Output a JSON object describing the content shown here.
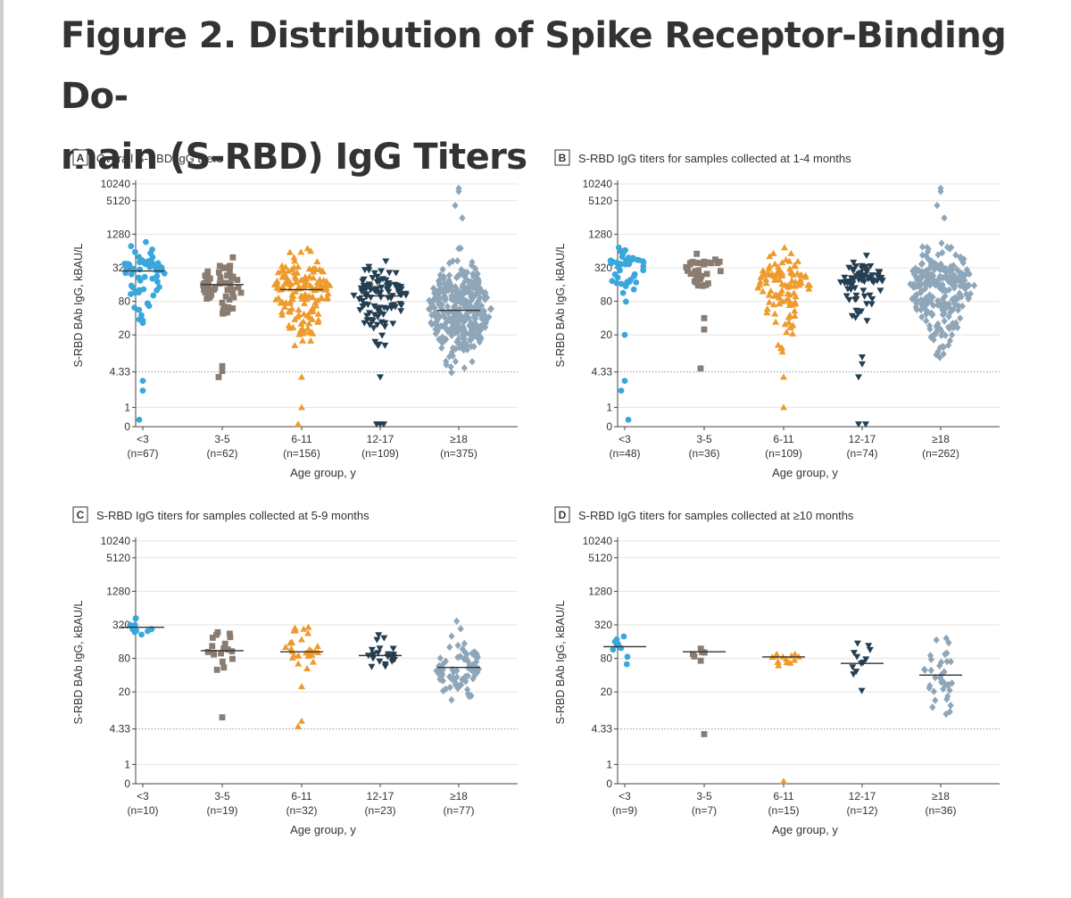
{
  "figure": {
    "title": "Figure 2.  Distribution of Spike Receptor-Binding Domain (S-RBD) IgG Titers",
    "title_line1": "Figure 2.  Distribution of Spike Receptor-Binding Do-",
    "title_line2": "main (S-RBD) IgG Titers"
  },
  "colors": {
    "lt3": "#3aa7dc",
    "3to5": "#8a7c70",
    "6to11": "#ee9a2c",
    "12to17": "#253f52",
    "ge18": "#8fa6b8",
    "median_line": "#333333",
    "threshold_line": "#999999",
    "grid": "#e4e4e4",
    "axis": "#444444"
  },
  "chart_data": [
    {
      "id": "A",
      "type": "scatter",
      "panel_letter": "A",
      "title": "Overall S-RBD IgG titers",
      "xlabel": "Age group, y",
      "ylabel": "S-RBD BAb IgG, kBAU/L",
      "y_scale": "log2",
      "y_ticks": [
        "10240",
        "5120",
        "1280",
        "320",
        "80",
        "20",
        "4.33",
        "1",
        "0"
      ],
      "threshold": 4.33,
      "grid": true,
      "groups": [
        {
          "label": "<3",
          "n_label": "(n=67)",
          "n": 67,
          "marker": "circle",
          "color": "#3aa7dc",
          "median": 280,
          "low": 20,
          "high": 1000,
          "outliers": [
            3.0,
            2.0,
            0.6
          ]
        },
        {
          "label": "3-5",
          "n_label": "(n=62)",
          "n": 62,
          "marker": "square",
          "color": "#8a7c70",
          "median": 160,
          "low": 20,
          "high": 650,
          "outliers": [
            5.5,
            4.5,
            3.5
          ]
        },
        {
          "label": "6-11",
          "n_label": "(n=156)",
          "n": 156,
          "marker": "triangle-up",
          "color": "#ee9a2c",
          "median": 130,
          "low": 5.5,
          "high": 900,
          "outliers": [
            3.5,
            1.0,
            0.5
          ]
        },
        {
          "label": "12-17",
          "n_label": "(n=109)",
          "n": 109,
          "marker": "triangle-down",
          "color": "#253f52",
          "median": 100,
          "low": 7.0,
          "high": 600,
          "outliers": [
            3.5,
            0.5,
            0.5,
            0.5
          ]
        },
        {
          "label": "≥18",
          "n_label": "(n=375)",
          "n": 375,
          "marker": "diamond",
          "color": "#8fa6b8",
          "median": 55,
          "low": 3.5,
          "high": 1100,
          "outliers": [
            8500,
            7500,
            4200,
            2500
          ]
        }
      ]
    },
    {
      "id": "B",
      "type": "scatter",
      "panel_letter": "B",
      "title": "S-RBD IgG titers for samples collected at 1-4 months",
      "xlabel": "Age group, y",
      "ylabel": "S-RBD BAb IgG, kBAU/L",
      "y_scale": "log2",
      "y_ticks": [
        "10240",
        "5120",
        "1280",
        "320",
        "80",
        "20",
        "4.33",
        "1",
        "0"
      ],
      "threshold": 4.33,
      "grid": true,
      "groups": [
        {
          "label": "<3",
          "n_label": "(n=48)",
          "n": 48,
          "marker": "circle",
          "color": "#3aa7dc",
          "median": null,
          "low": 50,
          "high": 1000,
          "outliers": [
            20,
            3.0,
            2.0,
            0.6
          ]
        },
        {
          "label": "3-5",
          "n_label": "(n=36)",
          "n": 36,
          "marker": "square",
          "color": "#8a7c70",
          "median": null,
          "low": 90,
          "high": 650,
          "outliers": [
            40,
            25,
            5.0
          ]
        },
        {
          "label": "6-11",
          "n_label": "(n=109)",
          "n": 109,
          "marker": "triangle-up",
          "color": "#ee9a2c",
          "median": null,
          "low": 6.0,
          "high": 900,
          "outliers": [
            3.5,
            1.0
          ]
        },
        {
          "label": "12-17",
          "n_label": "(n=74)",
          "n": 74,
          "marker": "triangle-down",
          "color": "#253f52",
          "median": null,
          "low": 15,
          "high": 600,
          "outliers": [
            8.0,
            6.0,
            3.5,
            0.5,
            0.5
          ]
        },
        {
          "label": "≥18",
          "n_label": "(n=262)",
          "n": 262,
          "marker": "diamond",
          "color": "#8fa6b8",
          "median": null,
          "low": 4.0,
          "high": 1100,
          "outliers": [
            8500,
            7500,
            4200,
            2500
          ]
        }
      ]
    },
    {
      "id": "C",
      "type": "scatter",
      "panel_letter": "C",
      "title": "S-RBD IgG titers for samples collected at 5-9 months",
      "xlabel": "Age group, y",
      "ylabel": "S-RBD BAb IgG, kBAU/L",
      "y_scale": "log2",
      "y_ticks": [
        "10240",
        "5120",
        "1280",
        "320",
        "80",
        "20",
        "4.33",
        "1",
        "0"
      ],
      "threshold": 4.33,
      "grid": true,
      "groups": [
        {
          "label": "<3",
          "n_label": "(n=10)",
          "n": 10,
          "marker": "circle",
          "color": "#3aa7dc",
          "median": 290,
          "low": 95,
          "high": 650,
          "outliers": []
        },
        {
          "label": "3-5",
          "n_label": "(n=19)",
          "n": 19,
          "marker": "square",
          "color": "#8a7c70",
          "median": 110,
          "low": 45,
          "high": 380,
          "outliers": [
            7.0
          ]
        },
        {
          "label": "6-11",
          "n_label": "(n=32)",
          "n": 32,
          "marker": "triangle-up",
          "color": "#ee9a2c",
          "median": 105,
          "low": 40,
          "high": 550,
          "outliers": [
            25,
            6.0,
            4.8
          ]
        },
        {
          "label": "12-17",
          "n_label": "(n=23)",
          "n": 23,
          "marker": "triangle-down",
          "color": "#253f52",
          "median": 90,
          "low": 30,
          "high": 300,
          "outliers": []
        },
        {
          "label": "≥18",
          "n_label": "(n=77)",
          "n": 77,
          "marker": "diamond",
          "color": "#8fa6b8",
          "median": 55,
          "low": 7.5,
          "high": 700,
          "outliers": []
        }
      ]
    },
    {
      "id": "D",
      "type": "scatter",
      "panel_letter": "D",
      "title": "S-RBD IgG titers for samples collected at ≥10 months",
      "xlabel": "Age group, y",
      "ylabel": "S-RBD BAb IgG, kBAU/L",
      "y_scale": "log2",
      "y_ticks": [
        "10240",
        "5120",
        "1280",
        "320",
        "80",
        "20",
        "4.33",
        "1",
        "0"
      ],
      "threshold": 4.33,
      "grid": true,
      "groups": [
        {
          "label": "<3",
          "n_label": "(n=9)",
          "n": 9,
          "marker": "circle",
          "color": "#3aa7dc",
          "median": 130,
          "low": 40,
          "high": 230,
          "outliers": []
        },
        {
          "label": "3-5",
          "n_label": "(n=7)",
          "n": 7,
          "marker": "square",
          "color": "#8a7c70",
          "median": 105,
          "low": 55,
          "high": 180,
          "outliers": [
            3.5
          ]
        },
        {
          "label": "6-11",
          "n_label": "(n=15)",
          "n": 15,
          "marker": "triangle-up",
          "color": "#ee9a2c",
          "median": 85,
          "low": 35,
          "high": 115,
          "outliers": [
            0.5
          ]
        },
        {
          "label": "12-17",
          "n_label": "(n=12)",
          "n": 12,
          "marker": "triangle-down",
          "color": "#253f52",
          "median": 65,
          "low": 10,
          "high": 280,
          "outliers": []
        },
        {
          "label": "≥18",
          "n_label": "(n=36)",
          "n": 36,
          "marker": "diamond",
          "color": "#8fa6b8",
          "median": 40,
          "low": 4.0,
          "high": 420,
          "outliers": []
        }
      ]
    }
  ]
}
